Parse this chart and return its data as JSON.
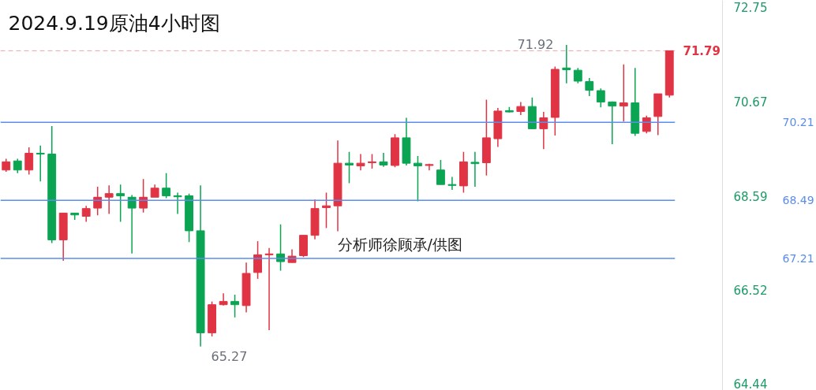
{
  "chart_data": {
    "type": "candlestick",
    "title": "2024.9.19原油4小时图",
    "categories": [
      null,
      null,
      null,
      null,
      null,
      null,
      null,
      null,
      null,
      null,
      null,
      null,
      null,
      null,
      null,
      null,
      null,
      null,
      null,
      null,
      null,
      null,
      null,
      null,
      null,
      null,
      null,
      null,
      null,
      null,
      null,
      null,
      null,
      null,
      null,
      null,
      null,
      null,
      null,
      null,
      null,
      null,
      null,
      null,
      null,
      null,
      null,
      null,
      null,
      null,
      null,
      null,
      null,
      null,
      null,
      null,
      null,
      null,
      null
    ],
    "ohlc": [
      [
        69.16,
        69.41,
        69.12,
        69.34
      ],
      [
        69.36,
        69.41,
        69.09,
        69.16
      ],
      [
        69.16,
        69.66,
        69.06,
        69.53
      ],
      [
        69.53,
        69.7,
        68.91,
        69.51
      ],
      [
        69.51,
        70.13,
        67.55,
        67.62
      ],
      [
        67.62,
        68.21,
        67.16,
        68.21
      ],
      [
        68.21,
        68.21,
        68.06,
        68.17
      ],
      [
        68.14,
        68.37,
        68.02,
        68.31
      ],
      [
        68.32,
        68.79,
        68.16,
        68.56
      ],
      [
        68.56,
        68.82,
        68.19,
        68.64
      ],
      [
        68.64,
        68.84,
        68.02,
        68.59
      ],
      [
        68.56,
        68.61,
        67.32,
        68.32
      ],
      [
        68.32,
        68.96,
        68.22,
        68.56
      ],
      [
        68.56,
        68.84,
        68.56,
        68.76
      ],
      [
        68.76,
        69.09,
        68.54,
        68.59
      ],
      [
        68.59,
        68.66,
        68.19,
        68.57
      ],
      [
        68.59,
        68.64,
        67.57,
        67.82
      ],
      [
        67.82,
        68.82,
        65.27,
        65.57
      ],
      [
        65.57,
        66.26,
        65.49,
        66.19
      ],
      [
        66.19,
        66.44,
        66.17,
        66.26
      ],
      [
        66.26,
        66.41,
        65.91,
        66.19
      ],
      [
        66.17,
        67.12,
        66.02,
        66.88
      ],
      [
        66.9,
        67.59,
        66.76,
        67.29
      ],
      [
        67.29,
        67.44,
        65.63,
        67.31
      ],
      [
        67.31,
        67.96,
        66.94,
        67.14
      ],
      [
        67.12,
        67.41,
        67.12,
        67.26
      ],
      [
        67.27,
        67.72,
        67.24,
        67.72
      ],
      [
        67.72,
        68.51,
        67.63,
        68.31
      ],
      [
        68.33,
        68.66,
        67.88,
        68.37
      ],
      [
        68.37,
        69.81,
        67.81,
        69.31
      ],
      [
        69.31,
        69.56,
        68.87,
        69.27
      ],
      [
        69.25,
        69.51,
        69.15,
        69.31
      ],
      [
        69.32,
        69.51,
        69.19,
        69.34
      ],
      [
        69.34,
        69.54,
        69.23,
        69.27
      ],
      [
        69.26,
        69.95,
        69.22,
        69.87
      ],
      [
        69.87,
        70.31,
        69.26,
        69.31
      ],
      [
        69.31,
        69.47,
        68.47,
        69.25
      ],
      [
        69.26,
        69.3,
        69.15,
        69.28
      ],
      [
        69.16,
        69.38,
        68.84,
        68.84
      ],
      [
        68.84,
        69.01,
        68.72,
        68.82
      ],
      [
        68.81,
        69.56,
        68.66,
        69.34
      ],
      [
        69.33,
        69.56,
        68.79,
        69.3
      ],
      [
        69.32,
        70.71,
        69.04,
        69.87
      ],
      [
        69.85,
        70.53,
        69.67,
        70.46
      ],
      [
        70.47,
        70.55,
        70.43,
        70.44
      ],
      [
        70.45,
        70.66,
        70.37,
        70.56
      ],
      [
        70.56,
        70.76,
        70.07,
        70.07
      ],
      [
        70.07,
        70.44,
        69.62,
        70.31
      ],
      [
        70.32,
        71.44,
        69.92,
        71.38
      ],
      [
        71.41,
        71.92,
        71.07,
        71.37
      ],
      [
        71.36,
        71.41,
        71.07,
        71.12
      ],
      [
        71.11,
        71.19,
        70.79,
        70.92
      ],
      [
        70.91,
        70.96,
        70.54,
        70.66
      ],
      [
        70.66,
        70.67,
        69.73,
        70.57
      ],
      [
        70.57,
        71.49,
        70.23,
        70.64
      ],
      [
        70.64,
        71.41,
        69.91,
        69.97
      ],
      [
        70.01,
        70.36,
        69.97,
        70.31
      ],
      [
        70.34,
        70.84,
        69.93,
        70.84
      ],
      [
        70.81,
        71.79,
        70.76,
        71.79
      ]
    ],
    "colors": [
      "#e03444",
      "#0aa453",
      "#e03444",
      "#0aa453",
      "#0aa453",
      "#e03444",
      "#0aa453",
      "#e03444",
      "#e03444",
      "#e03444",
      "#0aa453",
      "#0aa453",
      "#e03444",
      "#e03444",
      "#0aa453",
      "#0aa453",
      "#0aa453",
      "#0aa453",
      "#e03444",
      "#e03444",
      "#0aa453",
      "#e03444",
      "#e03444",
      "#e03444",
      "#0aa453",
      "#e03444",
      "#e03444",
      "#e03444",
      "#e03444",
      "#e03444",
      "#0aa453",
      "#e03444",
      "#e03444",
      "#0aa453",
      "#e03444",
      "#0aa453",
      "#0aa453",
      "#e03444",
      "#0aa453",
      "#0aa453",
      "#e03444",
      "#0aa453",
      "#e03444",
      "#e03444",
      "#0aa453",
      "#e03444",
      "#0aa453",
      "#e03444",
      "#e03444",
      "#0aa453",
      "#0aa453",
      "#0aa453",
      "#0aa453",
      "#0aa453",
      "#e03444",
      "#0aa453",
      "#e03444",
      "#e03444",
      "#e03444"
    ],
    "ylim": [
      64.3,
      72.9
    ],
    "yticks": [
      72.75,
      70.67,
      68.59,
      66.52,
      64.44
    ],
    "tick_labels": "y",
    "grid": false,
    "ref_lines": [
      {
        "axis": "y",
        "value": 70.21,
        "label": "70.21",
        "color": "#5b8def"
      },
      {
        "axis": "y",
        "value": 68.49,
        "label": "68.49",
        "color": "#5b8def"
      },
      {
        "axis": "y",
        "value": 67.21,
        "label": "67.21",
        "color": "#5b8def"
      },
      {
        "axis": "y",
        "value": 71.79,
        "label": "71.79",
        "color": "#e03444",
        "line_style": "dashed"
      }
    ],
    "annotations": [
      "71.92",
      "65.27",
      "分析师徐顾承/供图"
    ]
  }
}
